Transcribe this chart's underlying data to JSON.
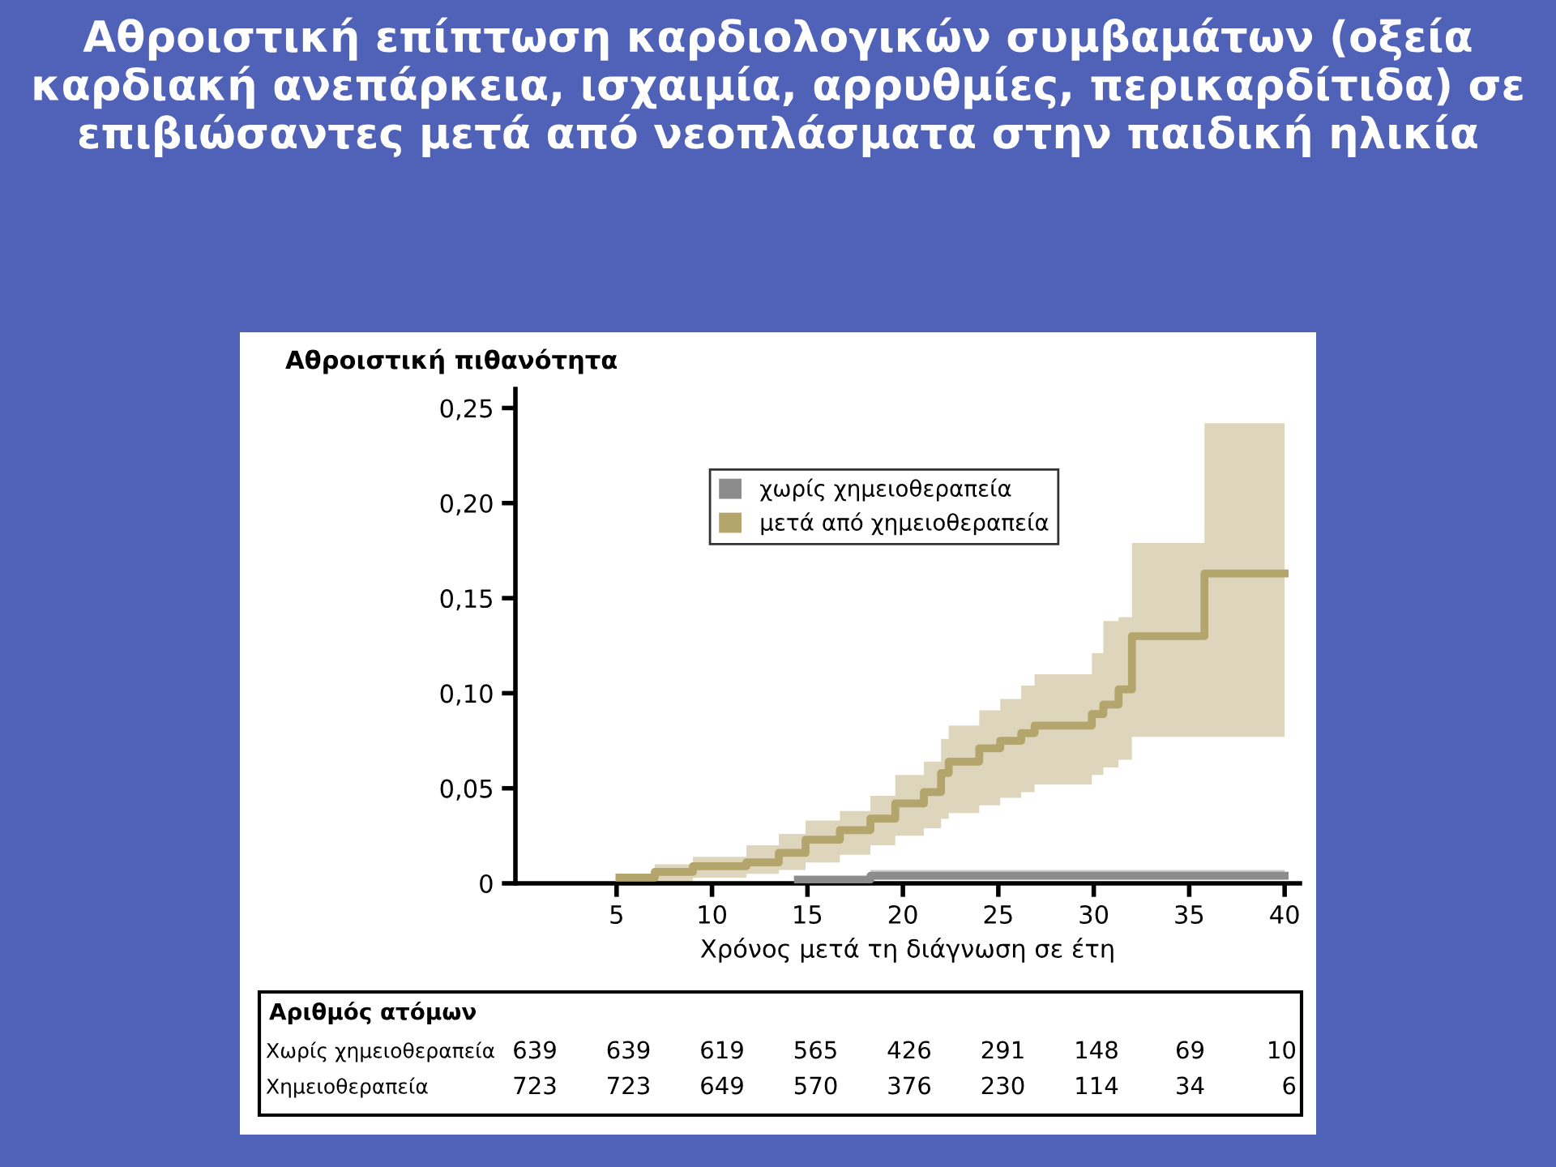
{
  "chart_data": {
    "type": "step",
    "title": "Αθροιστική επίπτωση καρδιολογικών συμβαμάτων (οξεία καρδιακή ανεπάρκεια, ισχαιμία, αρρυθμίες, περικαρδίτιδα) σε επιβιώσαντες μετά από νεοπλάσματα στην παιδική ηλικία",
    "ylabel": "Αθροιστική πιθανότητα",
    "xlabel": "Χρόνος μετά τη διάγνωση σε έτη",
    "series": [
      {
        "name": "χωρίς χημειοθεραπεία",
        "color": "#8c8c8c",
        "x": [
          14.5,
          18.3,
          40
        ],
        "values": [
          0.002,
          0.004,
          0.004
        ],
        "lower": [
          0.001,
          0.002,
          0.002
        ],
        "upper": [
          0.003,
          0.007,
          0.007
        ]
      },
      {
        "name": "μετά από χημειοθεραπεία",
        "color": "#b3a56b",
        "x": [
          5.15,
          7.0,
          9.0,
          11.8,
          13.5,
          14.9,
          16.7,
          18.3,
          19.6,
          21.1,
          22.0,
          22.4,
          24.0,
          25.1,
          26.2,
          26.9,
          29.9,
          30.5,
          31.3,
          32.0,
          35.8,
          40
        ],
        "values": [
          0.003,
          0.006,
          0.009,
          0.011,
          0.016,
          0.023,
          0.028,
          0.034,
          0.042,
          0.048,
          0.058,
          0.064,
          0.071,
          0.075,
          0.079,
          0.083,
          0.089,
          0.094,
          0.102,
          0.13,
          0.163,
          0.163
        ],
        "lower": [
          0,
          0.001,
          0.003,
          0.005,
          0.007,
          0.011,
          0.015,
          0.02,
          0.025,
          0.029,
          0.034,
          0.037,
          0.041,
          0.045,
          0.048,
          0.052,
          0.057,
          0.061,
          0.065,
          0.077,
          0.077,
          0.077
        ],
        "upper": [
          0.005,
          0.01,
          0.014,
          0.02,
          0.026,
          0.033,
          0.038,
          0.046,
          0.057,
          0.064,
          0.076,
          0.083,
          0.091,
          0.097,
          0.104,
          0.11,
          0.121,
          0.138,
          0.14,
          0.179,
          0.242,
          0.242
        ]
      }
    ],
    "xlim": [
      -0.3,
      40.8
    ],
    "xticks": [
      5,
      10,
      15,
      20,
      25,
      30,
      35,
      40
    ],
    "ylim": [
      0,
      0.26
    ],
    "yticks": [
      0,
      {
        "value": 0.05,
        "label": "0,05"
      },
      {
        "value": 0.1,
        "label": "0,10"
      },
      {
        "value": 0.15,
        "label": "0,15"
      },
      {
        "value": 0.2,
        "label": "0,20"
      },
      {
        "value": 0.25,
        "label": "0,25"
      }
    ],
    "legend": "top",
    "grid": false,
    "line_style": "solid",
    "annotations": [
      "Αριθμός ατόμων",
      "Χωρίς χημειοθεραπεία",
      "639",
      "639",
      "619",
      "565",
      "426",
      "291",
      "148",
      "69",
      "10",
      "Χημειοθεραπεία",
      "723",
      "723",
      "649",
      "570",
      "376",
      "230",
      "114",
      "34",
      "6"
    ]
  }
}
